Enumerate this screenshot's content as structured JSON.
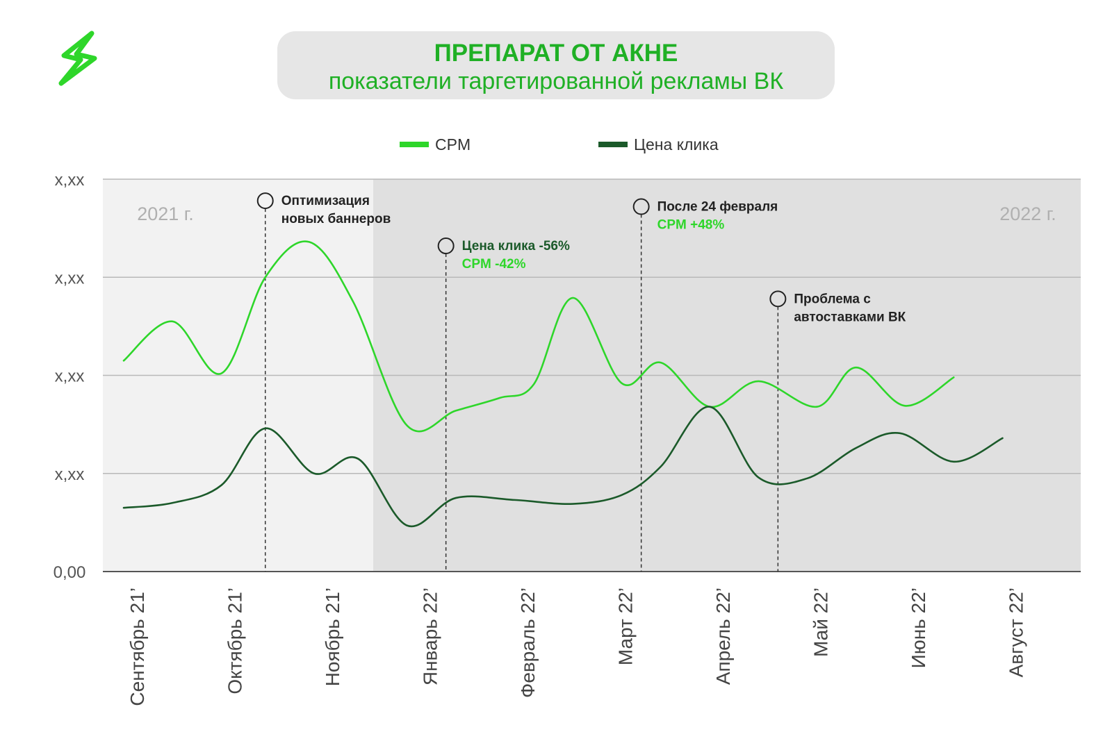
{
  "title": "ПРЕПАРАТ ОТ АКНЕ",
  "subtitle": "показатели таргетированной рекламы ВК",
  "colors": {
    "cpm": "#2ed62a",
    "click": "#1b5a2a",
    "title": "#1fb025",
    "bg_2021": "#f2f2f2",
    "bg_2022": "#e0e0e0"
  },
  "icons": {
    "logo": "lightning-bolt-icon"
  },
  "chart_data": {
    "type": "line",
    "legend": [
      {
        "name": "CPM",
        "color": "#2ed62a"
      },
      {
        "name": "Цена клика",
        "color": "#1b5a2a"
      }
    ],
    "legend_position": "top-center",
    "x_ticks": [
      "Сентябрь 21’",
      "Октябрь 21’",
      "Ноябрь 21’",
      "Январь 22’",
      "Февраль 22’",
      "Март 22’",
      "Апрель 22’",
      "Май 22’",
      "Июнь 22’",
      "Август 22’"
    ],
    "y_ticks": [
      "0,00",
      "х,хх",
      "х,хх",
      "х,хх",
      "х,хх"
    ],
    "ylim": [
      0,
      4
    ],
    "grid": true,
    "period_labels": [
      "2021 г.",
      "2022 г."
    ],
    "series": [
      {
        "name": "CPM",
        "color": "#2ed62a",
        "points": [
          [
            0.0,
            2.15
          ],
          [
            0.5,
            2.55
          ],
          [
            1.0,
            2.02
          ],
          [
            1.45,
            3.0
          ],
          [
            1.9,
            3.36
          ],
          [
            2.35,
            2.75
          ],
          [
            2.9,
            1.49
          ],
          [
            3.4,
            1.64
          ],
          [
            3.85,
            1.77
          ],
          [
            4.2,
            1.91
          ],
          [
            4.6,
            2.79
          ],
          [
            5.1,
            1.92
          ],
          [
            5.5,
            2.13
          ],
          [
            6.0,
            1.68
          ],
          [
            6.5,
            1.94
          ],
          [
            7.1,
            1.68
          ],
          [
            7.5,
            2.08
          ],
          [
            8.0,
            1.69
          ],
          [
            8.5,
            1.98
          ]
        ]
      },
      {
        "name": "Цена клика",
        "color": "#1b5a2a",
        "points": [
          [
            0.0,
            0.65
          ],
          [
            0.5,
            0.7
          ],
          [
            1.0,
            0.88
          ],
          [
            1.45,
            1.46
          ],
          [
            1.95,
            1.0
          ],
          [
            2.4,
            1.15
          ],
          [
            2.9,
            0.47
          ],
          [
            3.4,
            0.75
          ],
          [
            4.0,
            0.73
          ],
          [
            4.6,
            0.69
          ],
          [
            5.1,
            0.78
          ],
          [
            5.5,
            1.07
          ],
          [
            6.0,
            1.68
          ],
          [
            6.5,
            0.96
          ],
          [
            7.0,
            0.95
          ],
          [
            7.5,
            1.26
          ],
          [
            7.95,
            1.41
          ],
          [
            8.5,
            1.12
          ],
          [
            9.0,
            1.36
          ]
        ]
      }
    ],
    "annotations": [
      {
        "x": 1.45,
        "y": 3.78,
        "label": [
          "Оптимизация",
          "новых баннеров"
        ],
        "colors": [
          "#222222",
          "#222222"
        ]
      },
      {
        "x": 3.3,
        "y": 3.32,
        "label": [
          "Цена клика -56%",
          "CPM -42%"
        ],
        "colors": [
          "#1b5a2a",
          "#2ed62a"
        ]
      },
      {
        "x": 5.3,
        "y": 3.72,
        "label": [
          "После 24 февраля",
          "CPM +48%"
        ],
        "colors": [
          "#222222",
          "#2ed62a"
        ]
      },
      {
        "x": 6.7,
        "y": 2.78,
        "label": [
          "Проблема с",
          "автоставками ВК"
        ],
        "colors": [
          "#222222",
          "#222222"
        ]
      }
    ]
  }
}
